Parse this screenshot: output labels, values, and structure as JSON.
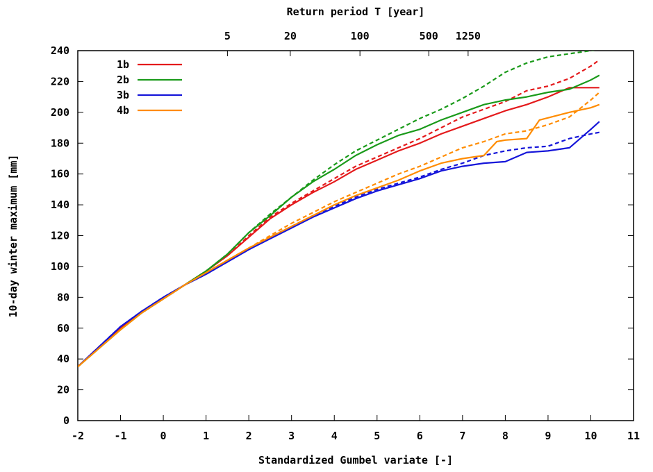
{
  "chart_data": {
    "type": "line",
    "top_axis_title": "Return period T [year]",
    "xlabel": "Standardized Gumbel variate [-]",
    "ylabel": "10-day winter maximum [mm]",
    "xlim": [
      -2,
      11
    ],
    "ylim": [
      0,
      240
    ],
    "x_ticks": [
      -2,
      -1,
      0,
      1,
      2,
      3,
      4,
      5,
      6,
      7,
      8,
      9,
      10,
      11
    ],
    "y_ticks": [
      0,
      20,
      40,
      60,
      80,
      100,
      120,
      140,
      160,
      180,
      200,
      220,
      240
    ],
    "top_ticks": [
      {
        "label": "5",
        "x": 1.5
      },
      {
        "label": "20",
        "x": 2.97
      },
      {
        "label": "100",
        "x": 4.6
      },
      {
        "label": "500",
        "x": 6.21
      },
      {
        "label": "1250",
        "x": 7.13
      }
    ],
    "legend_position": "top-left",
    "grid": false,
    "series": [
      {
        "name": "1b",
        "color": "#e41a1c",
        "style": "solid",
        "points": [
          [
            -2,
            35
          ],
          [
            -1.5,
            48
          ],
          [
            -1,
            60
          ],
          [
            -0.5,
            70
          ],
          [
            0,
            79
          ],
          [
            0.5,
            88
          ],
          [
            1,
            97
          ],
          [
            1.5,
            107
          ],
          [
            2,
            119
          ],
          [
            2.5,
            131
          ],
          [
            3,
            140
          ],
          [
            3.5,
            148
          ],
          [
            4,
            155
          ],
          [
            4.5,
            163
          ],
          [
            5,
            169
          ],
          [
            5.5,
            175
          ],
          [
            6,
            180
          ],
          [
            6.5,
            186
          ],
          [
            7,
            191
          ],
          [
            7.5,
            196
          ],
          [
            8,
            201
          ],
          [
            8.5,
            205
          ],
          [
            9,
            210
          ],
          [
            9.5,
            216
          ],
          [
            10,
            216
          ],
          [
            10.2,
            216
          ]
        ]
      },
      {
        "name": "",
        "color": "#e41a1c",
        "style": "dashed",
        "points": [
          [
            -2,
            35
          ],
          [
            -1.5,
            48
          ],
          [
            -1,
            60
          ],
          [
            -0.5,
            70
          ],
          [
            0,
            79
          ],
          [
            0.5,
            88
          ],
          [
            1,
            97
          ],
          [
            1.5,
            107
          ],
          [
            2,
            120
          ],
          [
            2.5,
            132
          ],
          [
            3,
            141
          ],
          [
            3.5,
            149
          ],
          [
            4,
            157
          ],
          [
            4.5,
            165
          ],
          [
            5,
            171
          ],
          [
            5.5,
            177
          ],
          [
            6,
            183
          ],
          [
            6.5,
            190
          ],
          [
            7,
            197
          ],
          [
            7.5,
            202
          ],
          [
            8,
            207
          ],
          [
            8.5,
            214
          ],
          [
            9,
            217
          ],
          [
            9.5,
            222
          ],
          [
            10,
            230
          ],
          [
            10.2,
            234
          ]
        ]
      },
      {
        "name": "2b",
        "color": "#1a9a1a",
        "style": "solid",
        "points": [
          [
            -2,
            35
          ],
          [
            -1.5,
            47
          ],
          [
            -1,
            59
          ],
          [
            -0.5,
            70
          ],
          [
            0,
            79
          ],
          [
            0.5,
            88
          ],
          [
            1,
            97
          ],
          [
            1.5,
            108
          ],
          [
            2,
            122
          ],
          [
            2.5,
            133
          ],
          [
            3,
            145
          ],
          [
            3.5,
            155
          ],
          [
            4,
            163
          ],
          [
            4.5,
            172
          ],
          [
            5,
            179
          ],
          [
            5.5,
            185
          ],
          [
            6,
            189
          ],
          [
            6.5,
            195
          ],
          [
            7,
            200
          ],
          [
            7.5,
            205
          ],
          [
            8,
            208
          ],
          [
            8.5,
            210
          ],
          [
            9,
            213
          ],
          [
            9.5,
            215
          ],
          [
            10,
            221
          ],
          [
            10.2,
            224
          ]
        ]
      },
      {
        "name": "",
        "color": "#1a9a1a",
        "style": "dashed",
        "points": [
          [
            -2,
            35
          ],
          [
            -1.5,
            47
          ],
          [
            -1,
            59
          ],
          [
            -0.5,
            70
          ],
          [
            0,
            79
          ],
          [
            0.5,
            88
          ],
          [
            1,
            97
          ],
          [
            1.5,
            108
          ],
          [
            2,
            122
          ],
          [
            2.5,
            134
          ],
          [
            3,
            145
          ],
          [
            3.5,
            156
          ],
          [
            4,
            166
          ],
          [
            4.5,
            175
          ],
          [
            5,
            182
          ],
          [
            5.5,
            189
          ],
          [
            6,
            196
          ],
          [
            6.5,
            202
          ],
          [
            7,
            209
          ],
          [
            7.5,
            217
          ],
          [
            8,
            226
          ],
          [
            8.5,
            232
          ],
          [
            9,
            236
          ],
          [
            9.5,
            238
          ],
          [
            10,
            240
          ],
          [
            10.2,
            241
          ]
        ]
      },
      {
        "name": "3b",
        "color": "#1515d9",
        "style": "solid",
        "points": [
          [
            -2,
            35
          ],
          [
            -1.5,
            48
          ],
          [
            -1,
            61
          ],
          [
            -0.5,
            71
          ],
          [
            0,
            80
          ],
          [
            0.5,
            88
          ],
          [
            1,
            95
          ],
          [
            1.5,
            103
          ],
          [
            2,
            111
          ],
          [
            2.5,
            118
          ],
          [
            3,
            125
          ],
          [
            3.5,
            132
          ],
          [
            4,
            138
          ],
          [
            4.5,
            144
          ],
          [
            5,
            149
          ],
          [
            5.5,
            153
          ],
          [
            6,
            157
          ],
          [
            6.5,
            162
          ],
          [
            7,
            165
          ],
          [
            7.5,
            167
          ],
          [
            8,
            168
          ],
          [
            8.5,
            174
          ],
          [
            9,
            175
          ],
          [
            9.5,
            177
          ],
          [
            10,
            189
          ],
          [
            10.2,
            194
          ]
        ]
      },
      {
        "name": "",
        "color": "#1515d9",
        "style": "dashed",
        "points": [
          [
            -2,
            35
          ],
          [
            -1.5,
            48
          ],
          [
            -1,
            61
          ],
          [
            -0.5,
            71
          ],
          [
            0,
            80
          ],
          [
            0.5,
            88
          ],
          [
            1,
            95
          ],
          [
            1.5,
            103
          ],
          [
            2,
            111
          ],
          [
            2.5,
            119
          ],
          [
            3,
            126
          ],
          [
            3.5,
            133
          ],
          [
            4,
            139
          ],
          [
            4.5,
            145
          ],
          [
            5,
            150
          ],
          [
            5.5,
            154
          ],
          [
            6,
            158
          ],
          [
            6.5,
            163
          ],
          [
            7,
            167
          ],
          [
            7.5,
            172
          ],
          [
            8,
            175
          ],
          [
            8.5,
            177
          ],
          [
            9,
            178
          ],
          [
            9.5,
            183
          ],
          [
            10,
            186
          ],
          [
            10.2,
            187
          ]
        ]
      },
      {
        "name": "4b",
        "color": "#ff8c00",
        "style": "solid",
        "points": [
          [
            -2,
            35
          ],
          [
            -1.5,
            47
          ],
          [
            -1,
            59
          ],
          [
            -0.5,
            70
          ],
          [
            0,
            79
          ],
          [
            0.5,
            88
          ],
          [
            1,
            96
          ],
          [
            1.5,
            104
          ],
          [
            2,
            112
          ],
          [
            2.5,
            119
          ],
          [
            3,
            126
          ],
          [
            3.5,
            133
          ],
          [
            4,
            140
          ],
          [
            4.5,
            146
          ],
          [
            5,
            151
          ],
          [
            5.5,
            156
          ],
          [
            6,
            162
          ],
          [
            6.5,
            167
          ],
          [
            7,
            170
          ],
          [
            7.5,
            172
          ],
          [
            7.8,
            181
          ],
          [
            8,
            182
          ],
          [
            8.5,
            183
          ],
          [
            8.8,
            195
          ],
          [
            9.5,
            200
          ],
          [
            10,
            203
          ],
          [
            10.2,
            205
          ]
        ]
      },
      {
        "name": "",
        "color": "#ff8c00",
        "style": "dashed",
        "points": [
          [
            -2,
            35
          ],
          [
            -1.5,
            47
          ],
          [
            -1,
            59
          ],
          [
            -0.5,
            70
          ],
          [
            0,
            79
          ],
          [
            0.5,
            88
          ],
          [
            1,
            96
          ],
          [
            1.5,
            104
          ],
          [
            2,
            112
          ],
          [
            2.5,
            120
          ],
          [
            3,
            128
          ],
          [
            3.5,
            135
          ],
          [
            4,
            142
          ],
          [
            4.5,
            148
          ],
          [
            5,
            154
          ],
          [
            5.5,
            160
          ],
          [
            6,
            165
          ],
          [
            6.5,
            171
          ],
          [
            7,
            177
          ],
          [
            7.5,
            181
          ],
          [
            8,
            186
          ],
          [
            8.5,
            188
          ],
          [
            9,
            192
          ],
          [
            9.5,
            197
          ],
          [
            10,
            208
          ],
          [
            10.2,
            213
          ]
        ]
      }
    ]
  }
}
